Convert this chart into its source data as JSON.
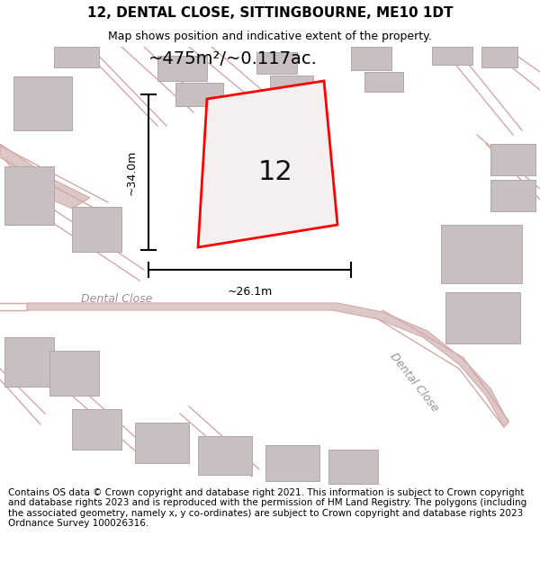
{
  "title": "12, DENTAL CLOSE, SITTINGBOURNE, ME10 1DT",
  "subtitle": "Map shows position and indicative extent of the property.",
  "footer": "Contains OS data © Crown copyright and database right 2021. This information is subject to Crown copyright and database rights 2023 and is reproduced with the permission of HM Land Registry. The polygons (including the associated geometry, namely x, y co-ordinates) are subject to Crown copyright and database rights 2023 Ordnance Survey 100026316.",
  "area_text": "~475m²/~0.117ac.",
  "dim_vertical": "~34.0m",
  "dim_horizontal": "~26.1m",
  "plot_number": "12",
  "map_bg": "#ede8e8",
  "plot_fill": "#f5efef",
  "plot_edge": "#ff0000",
  "road_color": "#d4a8a8",
  "road_fill": "#ddc8c8",
  "building_color": "#c8c0c0",
  "building_edge": "#b0a8a8",
  "dim_color": "#000000",
  "street_label_color": "#999090",
  "title_fontsize": 11,
  "subtitle_fontsize": 9,
  "footer_fontsize": 7.5,
  "area_fontsize": 14,
  "plot_num_fontsize": 22,
  "dim_fontsize": 9
}
